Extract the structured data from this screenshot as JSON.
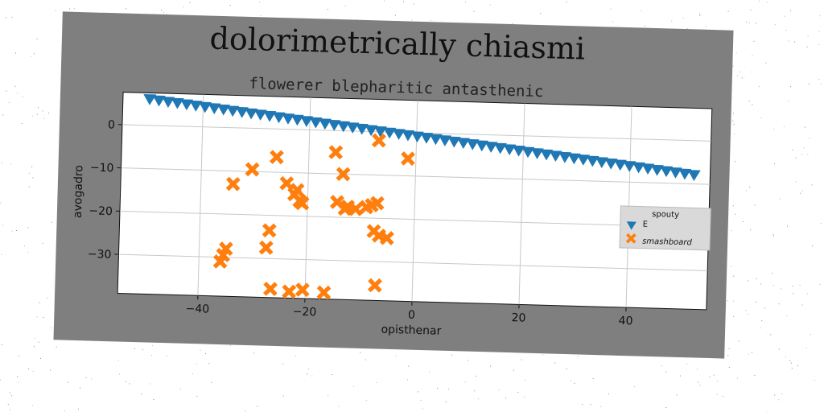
{
  "chart_data": {
    "type": "scatter",
    "title": "dolorimetrically chiasmi",
    "subtitle": "flowerer blepharitic antasthenic",
    "xlabel": "opisthenar",
    "ylabel": "avogadro",
    "xlim": [
      -55,
      55
    ],
    "ylim": [
      -39,
      7.5
    ],
    "xticks": [
      -40,
      -20,
      0,
      20,
      40
    ],
    "yticks": [
      0,
      -10,
      -20,
      -30
    ],
    "grid": true,
    "legend": {
      "title": "spouty",
      "placement": "right"
    },
    "series": [
      {
        "name": "E",
        "marker": "triangle-down",
        "color": "#1f77b4",
        "line": {
          "x_start": -50,
          "x_end": 52,
          "y_start": 6,
          "y_end": -8,
          "count": 60
        }
      },
      {
        "name": "smashboard",
        "marker": "x",
        "color": "#ff7f0e",
        "points": [
          [
            -36,
            -31
          ],
          [
            -35.5,
            -29.5
          ],
          [
            -35,
            -28
          ],
          [
            -34,
            -13
          ],
          [
            -30.5,
            -9.5
          ],
          [
            -27.5,
            -27.5
          ],
          [
            -27,
            -23.5
          ],
          [
            -26.5,
            -37
          ],
          [
            -26,
            -6.5
          ],
          [
            -24,
            -12.5
          ],
          [
            -23,
            -37.5
          ],
          [
            -22.5,
            -15
          ],
          [
            -22,
            -14
          ],
          [
            -21.5,
            -16.5
          ],
          [
            -21,
            -17
          ],
          [
            -20.5,
            -37
          ],
          [
            -16.5,
            -37.5
          ],
          [
            -15,
            -5
          ],
          [
            -14.5,
            -16.5
          ],
          [
            -13.5,
            -10
          ],
          [
            -13,
            -18
          ],
          [
            -12.5,
            -17.5
          ],
          [
            -11,
            -18
          ],
          [
            -9,
            -17.5
          ],
          [
            -8,
            -17
          ],
          [
            -7.5,
            -23
          ],
          [
            -7,
            -2
          ],
          [
            -7,
            -35.5
          ],
          [
            -7,
            -16.5
          ],
          [
            -6.5,
            -24
          ],
          [
            -5,
            -24.5
          ],
          [
            -1.5,
            -6
          ]
        ]
      }
    ]
  }
}
